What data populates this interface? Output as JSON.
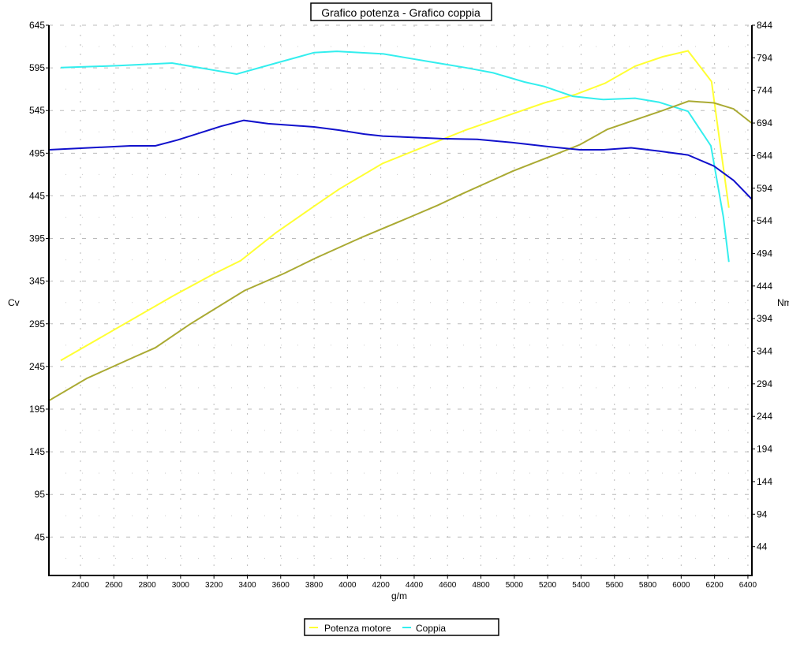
{
  "chart_data": {
    "type": "line",
    "title": "Grafico potenza - Grafico coppia",
    "xlabel": "g/m",
    "ylabel_left": "Cv",
    "ylabel_right": "Nm",
    "xlim": [
      2211,
      6424
    ],
    "ylim_left": [
      0,
      645
    ],
    "ylim_right": [
      0,
      844
    ],
    "x_ticks": [
      2400,
      2600,
      2800,
      3000,
      3200,
      3400,
      3600,
      3800,
      4000,
      4200,
      4400,
      4600,
      4800,
      5000,
      5200,
      5400,
      5600,
      5800,
      6000,
      6200,
      6400
    ],
    "y_ticks_left": [
      645,
      595,
      545,
      495,
      445,
      395,
      345,
      295,
      245,
      195,
      145,
      95,
      45
    ],
    "y_ticks_right": [
      844,
      794,
      744,
      694,
      644,
      594,
      544,
      494,
      444,
      394,
      344,
      294,
      244,
      194,
      144,
      94,
      44
    ],
    "grid": true,
    "legend_placement": "bottom",
    "series": [
      {
        "name": "Potenza motore",
        "axis": "left",
        "color": "#ffff33",
        "points": [
          [
            2282,
            252
          ],
          [
            2958,
            328
          ],
          [
            3194,
            353
          ],
          [
            3360,
            369
          ],
          [
            3573,
            402
          ],
          [
            3809,
            434
          ],
          [
            3951,
            453
          ],
          [
            4211,
            483
          ],
          [
            4707,
            522
          ],
          [
            5180,
            554
          ],
          [
            5369,
            564
          ],
          [
            5544,
            577
          ],
          [
            5724,
            597
          ],
          [
            5889,
            608
          ],
          [
            6041,
            615
          ],
          [
            6182,
            579
          ],
          [
            6286,
            431
          ]
        ]
      },
      {
        "name": "Coppia",
        "axis": "right",
        "color": "#33eeee",
        "points": [
          [
            2282,
            779
          ],
          [
            2627,
            782
          ],
          [
            2949,
            786
          ],
          [
            3336,
            769
          ],
          [
            3573,
            786
          ],
          [
            3800,
            802
          ],
          [
            3937,
            804
          ],
          [
            4216,
            800
          ],
          [
            4542,
            786
          ],
          [
            4707,
            779
          ],
          [
            4873,
            771
          ],
          [
            5061,
            757
          ],
          [
            5180,
            750
          ],
          [
            5350,
            735
          ],
          [
            5534,
            730
          ],
          [
            5724,
            732
          ],
          [
            5866,
            726
          ],
          [
            6041,
            712
          ],
          [
            6178,
            659
          ],
          [
            6253,
            550
          ],
          [
            6286,
            481
          ]
        ]
      },
      {
        "axis": "left",
        "color": "#aaaa33",
        "points": [
          [
            2211,
            205
          ],
          [
            2438,
            231
          ],
          [
            2721,
            256
          ],
          [
            2849,
            267
          ],
          [
            3052,
            294
          ],
          [
            3383,
            334
          ],
          [
            3620,
            354
          ],
          [
            3809,
            372
          ],
          [
            4093,
            397
          ],
          [
            4374,
            420
          ],
          [
            4542,
            434
          ],
          [
            4683,
            447
          ],
          [
            4991,
            474
          ],
          [
            5227,
            492
          ],
          [
            5393,
            505
          ],
          [
            5558,
            523
          ],
          [
            5724,
            534
          ],
          [
            5889,
            545
          ],
          [
            6045,
            556
          ],
          [
            6196,
            554
          ],
          [
            6314,
            547
          ],
          [
            6424,
            530
          ]
        ]
      },
      {
        "axis": "right",
        "color": "#1111cc",
        "points": [
          [
            2211,
            653
          ],
          [
            2698,
            659
          ],
          [
            2849,
            659
          ],
          [
            2982,
            668
          ],
          [
            3242,
            689
          ],
          [
            3379,
            698
          ],
          [
            3525,
            693
          ],
          [
            3800,
            688
          ],
          [
            3951,
            683
          ],
          [
            4102,
            677
          ],
          [
            4211,
            674
          ],
          [
            4565,
            670
          ],
          [
            4778,
            669
          ],
          [
            4991,
            664
          ],
          [
            5194,
            658
          ],
          [
            5393,
            653
          ],
          [
            5534,
            653
          ],
          [
            5700,
            656
          ],
          [
            5866,
            651
          ],
          [
            6041,
            645
          ],
          [
            6196,
            628
          ],
          [
            6314,
            606
          ],
          [
            6424,
            577
          ]
        ]
      }
    ]
  }
}
